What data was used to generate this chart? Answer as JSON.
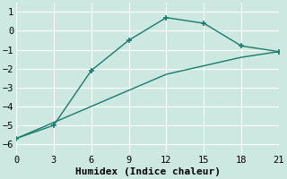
{
  "line1_x": [
    0,
    3,
    6,
    9,
    12,
    15,
    18,
    21
  ],
  "line1_y": [
    -5.7,
    -5.0,
    -2.1,
    -0.5,
    0.7,
    0.4,
    -0.8,
    -1.1
  ],
  "line2_x": [
    0,
    3,
    6,
    9,
    12,
    15,
    18,
    21
  ],
  "line2_y": [
    -5.7,
    -4.85,
    -4.0,
    -3.15,
    -2.3,
    -1.85,
    -1.4,
    -1.1
  ],
  "color": "#1a7a6e",
  "bg_color": "#cce8e0",
  "grid_color": "#ffffff",
  "xlabel": "Humidex (Indice chaleur)",
  "xlim": [
    0,
    21
  ],
  "ylim": [
    -6.5,
    1.5
  ],
  "xticks": [
    0,
    3,
    6,
    9,
    12,
    15,
    18,
    21
  ],
  "yticks": [
    -6,
    -5,
    -4,
    -3,
    -2,
    -1,
    0,
    1
  ],
  "marker": "+",
  "markersize": 5,
  "linewidth": 1.0,
  "xlabel_fontsize": 8,
  "tick_fontsize": 7.5
}
